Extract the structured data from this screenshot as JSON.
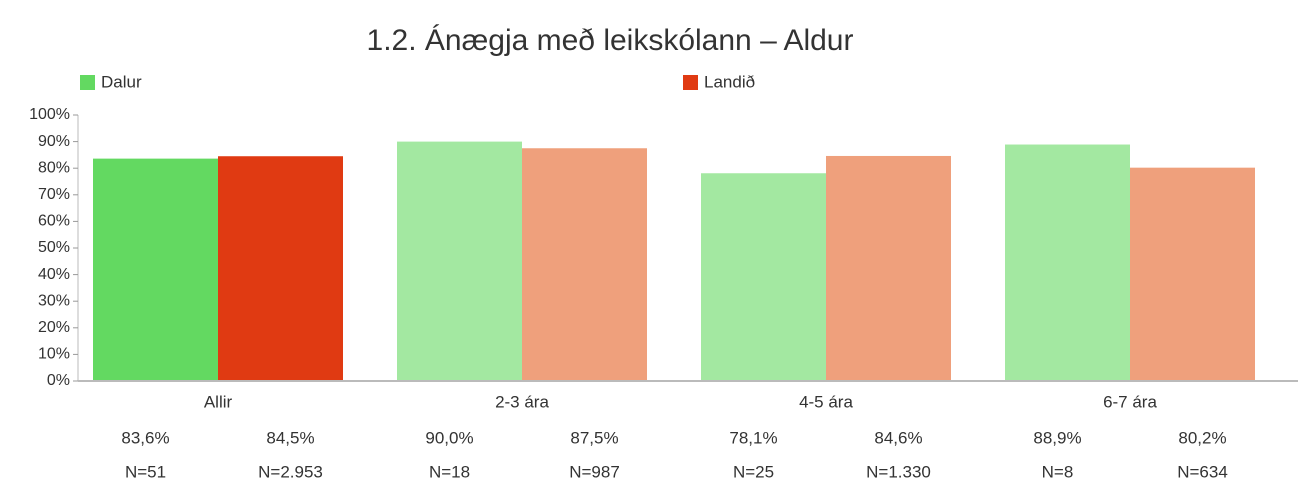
{
  "chart_data": {
    "type": "bar",
    "title": "1.2. Ánægja með leikskólann – Aldur",
    "categories": [
      "Allir",
      "2-3 ára",
      "4-5 ára",
      "6-7 ára"
    ],
    "series": [
      {
        "name": "Dalur",
        "color": "#63d961",
        "colors": [
          "#63d961",
          "#a3e8a1",
          "#a3e8a1",
          "#a3e8a1"
        ],
        "values": [
          83.6,
          90.0,
          78.1,
          88.9
        ],
        "value_labels": [
          "83,6%",
          "90,0%",
          "78,1%",
          "88,9%"
        ],
        "n_labels": [
          "N=51",
          "N=18",
          "N=25",
          "N=8"
        ]
      },
      {
        "name": "Landið",
        "color": "#e03a12",
        "colors": [
          "#e03a12",
          "#efa07c",
          "#efa07c",
          "#efa07c"
        ],
        "values": [
          84.5,
          87.5,
          84.6,
          80.2
        ],
        "value_labels": [
          "84,5%",
          "87,5%",
          "84,6%",
          "80,2%"
        ],
        "n_labels": [
          "N=2.953",
          "N=987",
          "N=1.330",
          "N=634"
        ]
      }
    ],
    "ylim": [
      0,
      100
    ],
    "yticks": [
      {
        "value": 0,
        "label": "0%"
      },
      {
        "value": 10,
        "label": "10%"
      },
      {
        "value": 20,
        "label": "20%"
      },
      {
        "value": 30,
        "label": "30%"
      },
      {
        "value": 40,
        "label": "40%"
      },
      {
        "value": 50,
        "label": "50%"
      },
      {
        "value": 60,
        "label": "60%"
      },
      {
        "value": 70,
        "label": "70%"
      },
      {
        "value": 80,
        "label": "80%"
      },
      {
        "value": 90,
        "label": "90%"
      },
      {
        "value": 100,
        "label": "100%"
      }
    ],
    "legend": "top"
  }
}
